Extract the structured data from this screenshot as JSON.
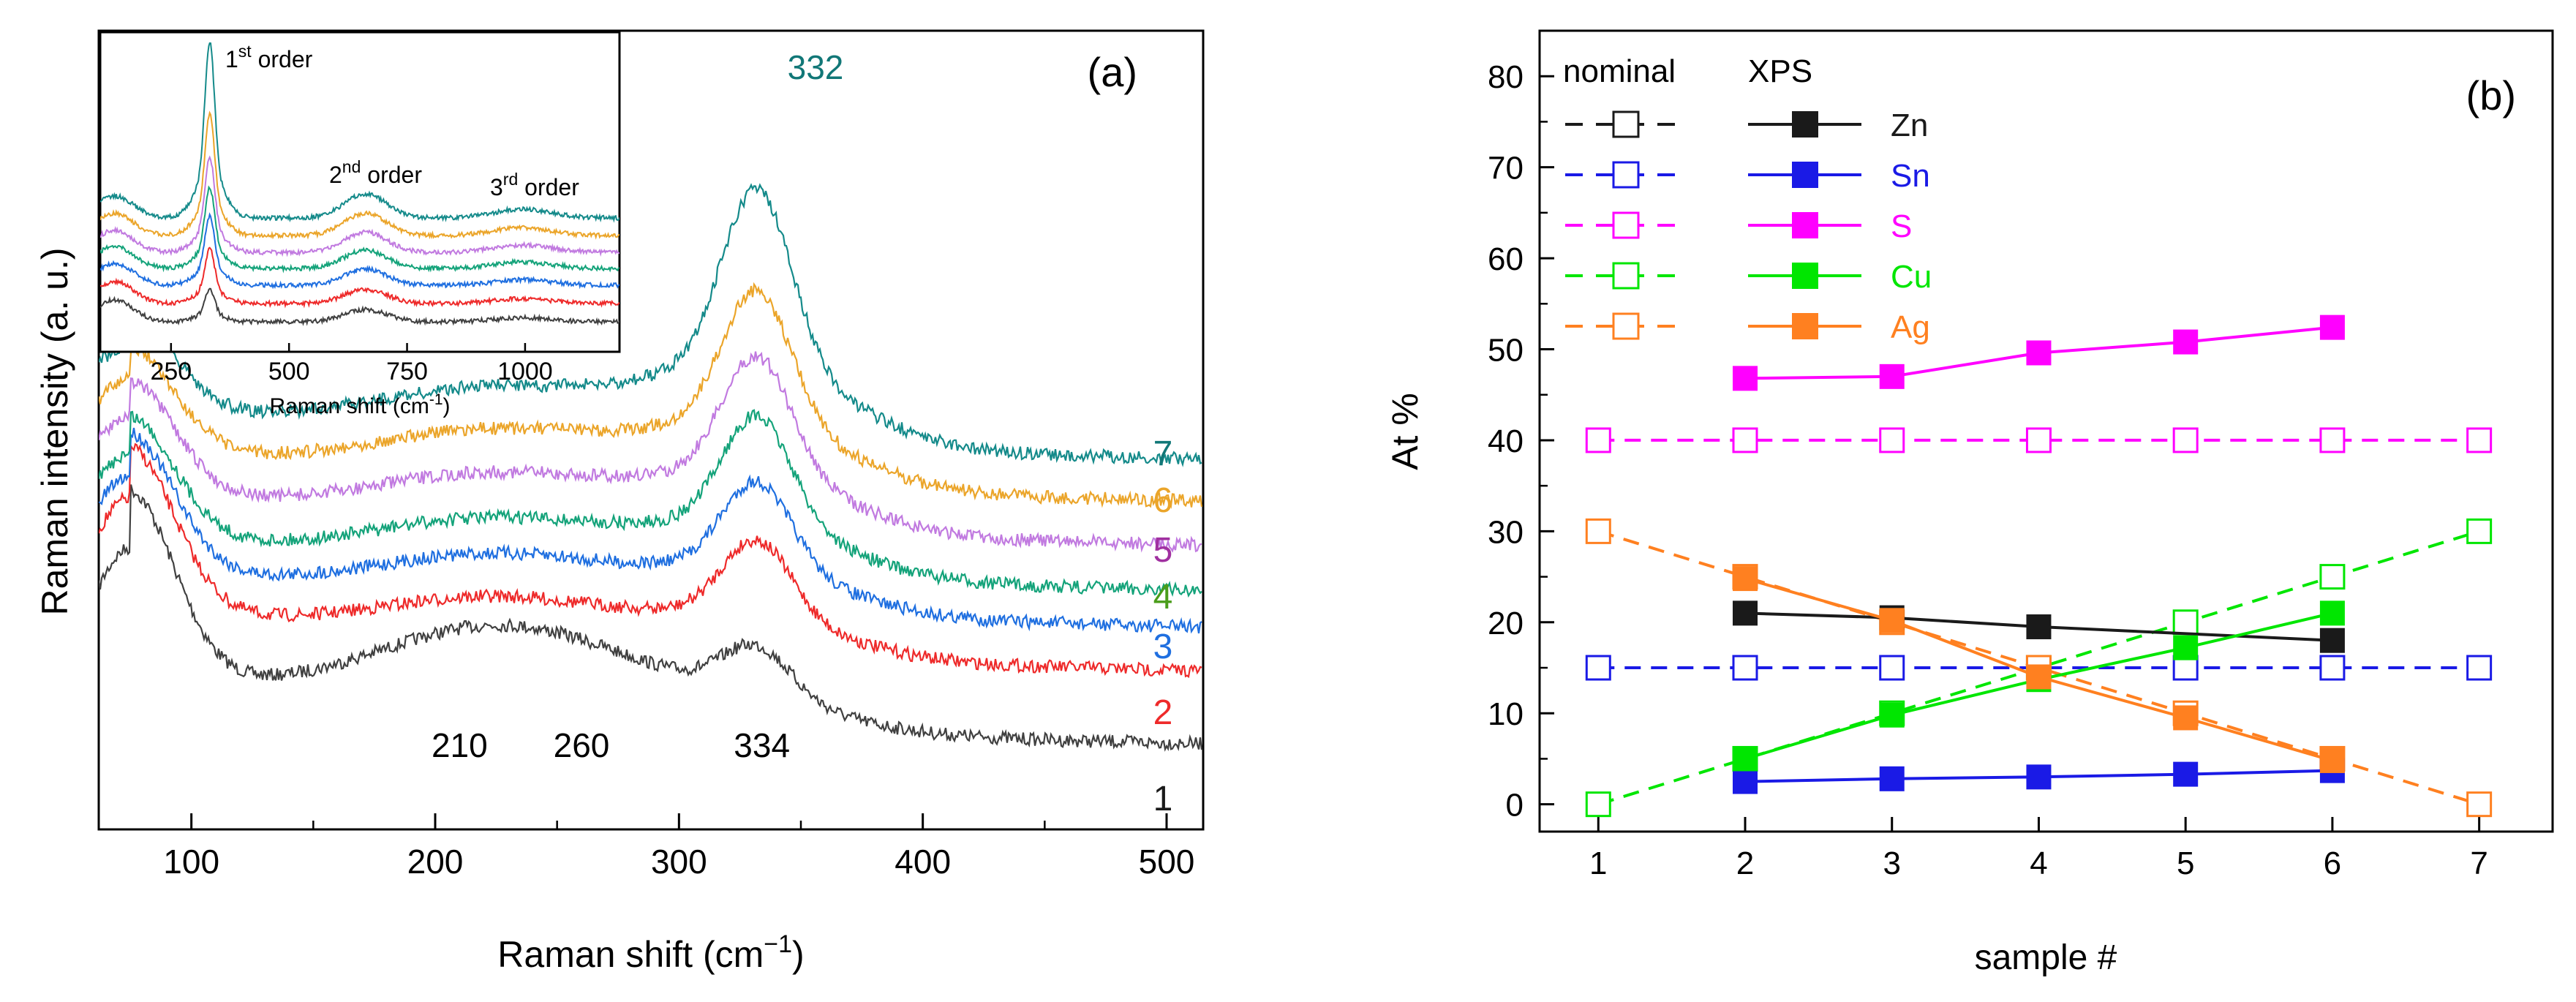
{
  "colors": {
    "black": "#1a1a1a",
    "gray": "#404040",
    "red": "#ee2a2a",
    "blue": "#1f6fe0",
    "green": "#14a37a",
    "purple": "#c17ae0",
    "orange": "#eba52a",
    "teal": "#148a8a",
    "sn": "#1a1ae6",
    "s": "#ff00ff",
    "cu": "#00e600",
    "ag": "#ff8020",
    "plum": "#a030a0",
    "olive": "#4a9d1a",
    "darkteal": "#117777"
  },
  "chart_data": [
    {
      "id": "a",
      "type": "line",
      "panel_label": "(a)",
      "xlabel": "Raman shift (cm",
      "xlabel_sup": "−1",
      "xlabel_close": ")",
      "ylabel": "Raman intensity (a. u.)",
      "xlim": [
        62,
        515
      ],
      "xticks": [
        "100",
        "200",
        "300",
        "400",
        "500"
      ],
      "xtick_values": [
        100,
        200,
        300,
        400,
        500
      ],
      "peak_labels": [
        "332",
        "210",
        "260",
        "334"
      ],
      "peak_positions": [
        332,
        210,
        260,
        334
      ],
      "series": [
        {
          "name": "1",
          "color": "#404040"
        },
        {
          "name": "2",
          "color": "#ee2a2a"
        },
        {
          "name": "3",
          "color": "#1f6fe0"
        },
        {
          "name": "4",
          "color": "#14a37a"
        },
        {
          "name": "5",
          "color": "#c17ae0"
        },
        {
          "name": "6",
          "color": "#eba52a"
        },
        {
          "name": "7",
          "color": "#148a8a"
        }
      ],
      "inset": {
        "xlabel": "Raman shift (cm",
        "xlabel_sup": "-1",
        "xlabel_close": ")",
        "xlim": [
          100,
          1200
        ],
        "xticks": [
          "250",
          "500",
          "750",
          "1000"
        ],
        "xtick_values": [
          250,
          500,
          750,
          1000
        ],
        "annotations": [
          {
            "text": "1",
            "sup": "st",
            "after": " order"
          },
          {
            "text": "2",
            "sup": "nd",
            "after": " order"
          },
          {
            "text": "3",
            "sup": "rd",
            "after": " order"
          }
        ]
      }
    },
    {
      "id": "b",
      "type": "line",
      "panel_label": "(b)",
      "xlabel": "sample #",
      "ylabel": "At %",
      "xlim": [
        0.6,
        7.5
      ],
      "ylim": [
        -3,
        85
      ],
      "xticks": [
        "1",
        "2",
        "3",
        "4",
        "5",
        "6",
        "7"
      ],
      "xtick_values": [
        1,
        2,
        3,
        4,
        5,
        6,
        7
      ],
      "yticks": [
        "0",
        "10",
        "20",
        "30",
        "40",
        "50",
        "60",
        "70",
        "80"
      ],
      "ytick_values": [
        0,
        10,
        20,
        30,
        40,
        50,
        60,
        70,
        80
      ],
      "legend_headers": [
        "nominal",
        "XPS"
      ],
      "nominal_series": [
        {
          "name": "Zn",
          "color": "#1a1a1a",
          "x": [],
          "y": []
        },
        {
          "name": "Sn",
          "color": "#1a1ae6",
          "x": [
            1,
            2,
            3,
            4,
            5,
            6,
            7
          ],
          "y": [
            15,
            15,
            15,
            15,
            15,
            15,
            15
          ]
        },
        {
          "name": "S",
          "color": "#ff00ff",
          "x": [
            1,
            2,
            3,
            4,
            5,
            6,
            7
          ],
          "y": [
            40,
            40,
            40,
            40,
            40,
            40,
            40
          ]
        },
        {
          "name": "Cu",
          "color": "#00e600",
          "x": [
            1,
            2,
            3,
            4,
            5,
            6,
            7
          ],
          "y": [
            0,
            5,
            10,
            15,
            20,
            25,
            30
          ]
        },
        {
          "name": "Ag",
          "color": "#ff8020",
          "x": [
            1,
            2,
            3,
            4,
            5,
            6,
            7
          ],
          "y": [
            30,
            25,
            20,
            15,
            10,
            5,
            0
          ]
        }
      ],
      "xps_series": [
        {
          "name": "Zn",
          "color": "#1a1a1a",
          "x": [
            2,
            3,
            4,
            6
          ],
          "y": [
            21,
            20.5,
            19.5,
            18
          ]
        },
        {
          "name": "Sn",
          "color": "#1a1ae6",
          "x": [
            2,
            3,
            4,
            5,
            6
          ],
          "y": [
            2.5,
            2.8,
            3,
            3.3,
            3.7
          ]
        },
        {
          "name": "S",
          "color": "#ff00ff",
          "x": [
            2,
            3,
            4,
            5,
            6
          ],
          "y": [
            46.8,
            47,
            49.6,
            50.8,
            52.4
          ]
        },
        {
          "name": "Cu",
          "color": "#00e600",
          "x": [
            2,
            3,
            4,
            5,
            6
          ],
          "y": [
            5,
            9.8,
            13.7,
            17.2,
            21
          ]
        },
        {
          "name": "Ag",
          "color": "#ff8020",
          "x": [
            2,
            3,
            4,
            5,
            6
          ],
          "y": [
            24.8,
            20.2,
            14,
            9.5,
            4.8
          ]
        }
      ]
    }
  ]
}
